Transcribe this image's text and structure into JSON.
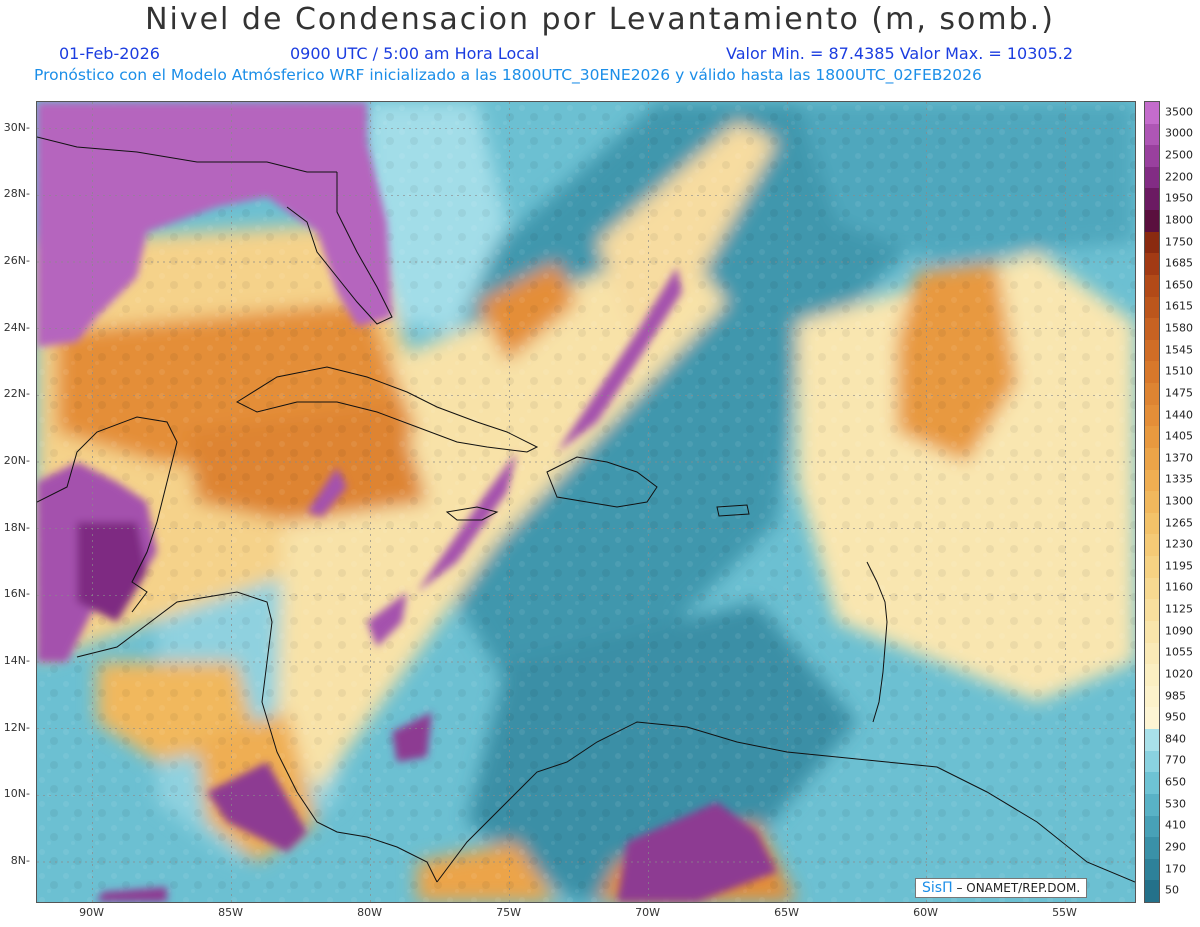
{
  "header": {
    "title": "Nivel de Condensacion por Levantamiento (m, somb.)",
    "date": "01-Feb-2026",
    "time": "0900 UTC / 5:00 am Hora Local",
    "minmax": "Valor Min. = 87.4385   Valor Max. = 10305.2",
    "forecast": "Pronóstico con el Modelo Atmósferico WRF inicializado a las 1800UTC_30ENE2026 y válido hasta las  1800UTC_02FEB2026"
  },
  "map": {
    "lat_labels": [
      "30N",
      "28N",
      "26N",
      "24N",
      "22N",
      "20N",
      "18N",
      "16N",
      "14N",
      "12N",
      "10N",
      "8N"
    ],
    "lon_labels": [
      "90W",
      "85W",
      "80W",
      "75W",
      "70W",
      "65W",
      "60W",
      "55W"
    ],
    "extent": {
      "lon_min": -92,
      "lon_max": -52.5,
      "lat_min": 6.8,
      "lat_max": 30.8
    }
  },
  "colorbar": {
    "labels": [
      "3500",
      "3000",
      "2500",
      "2200",
      "1950",
      "1800",
      "1750",
      "1685",
      "1650",
      "1615",
      "1580",
      "1545",
      "1510",
      "1475",
      "1440",
      "1405",
      "1370",
      "1335",
      "1300",
      "1265",
      "1230",
      "1195",
      "1160",
      "1125",
      "1090",
      "1055",
      "1020",
      "985",
      "950",
      "840",
      "770",
      "650",
      "530",
      "410",
      "290",
      "170",
      "50"
    ],
    "colors": [
      "#c46ccc",
      "#ae56b5",
      "#99409e",
      "#822c84",
      "#6b1a62",
      "#5a0f3e",
      "#8a2a10",
      "#a23a14",
      "#b24a18",
      "#bc561c",
      "#c76222",
      "#d06d26",
      "#d8782b",
      "#de8432",
      "#e48e38",
      "#e8993f",
      "#eca448",
      "#efae52",
      "#f1b85d",
      "#f3c269",
      "#f5ca76",
      "#f6d283",
      "#f7d991",
      "#f8df9e",
      "#f9e5ab",
      "#faeab7",
      "#fbefc2",
      "#fcf2cb",
      "#fdf5d4",
      "#a9e1ea",
      "#8ad2e0",
      "#6ec3d4",
      "#59b2c6",
      "#48a1b7",
      "#3a91a8",
      "#2e8199",
      "#24718a"
    ]
  },
  "credit": {
    "brand": "SisΠ",
    "text": "– ONAMET/REP.DOM."
  }
}
